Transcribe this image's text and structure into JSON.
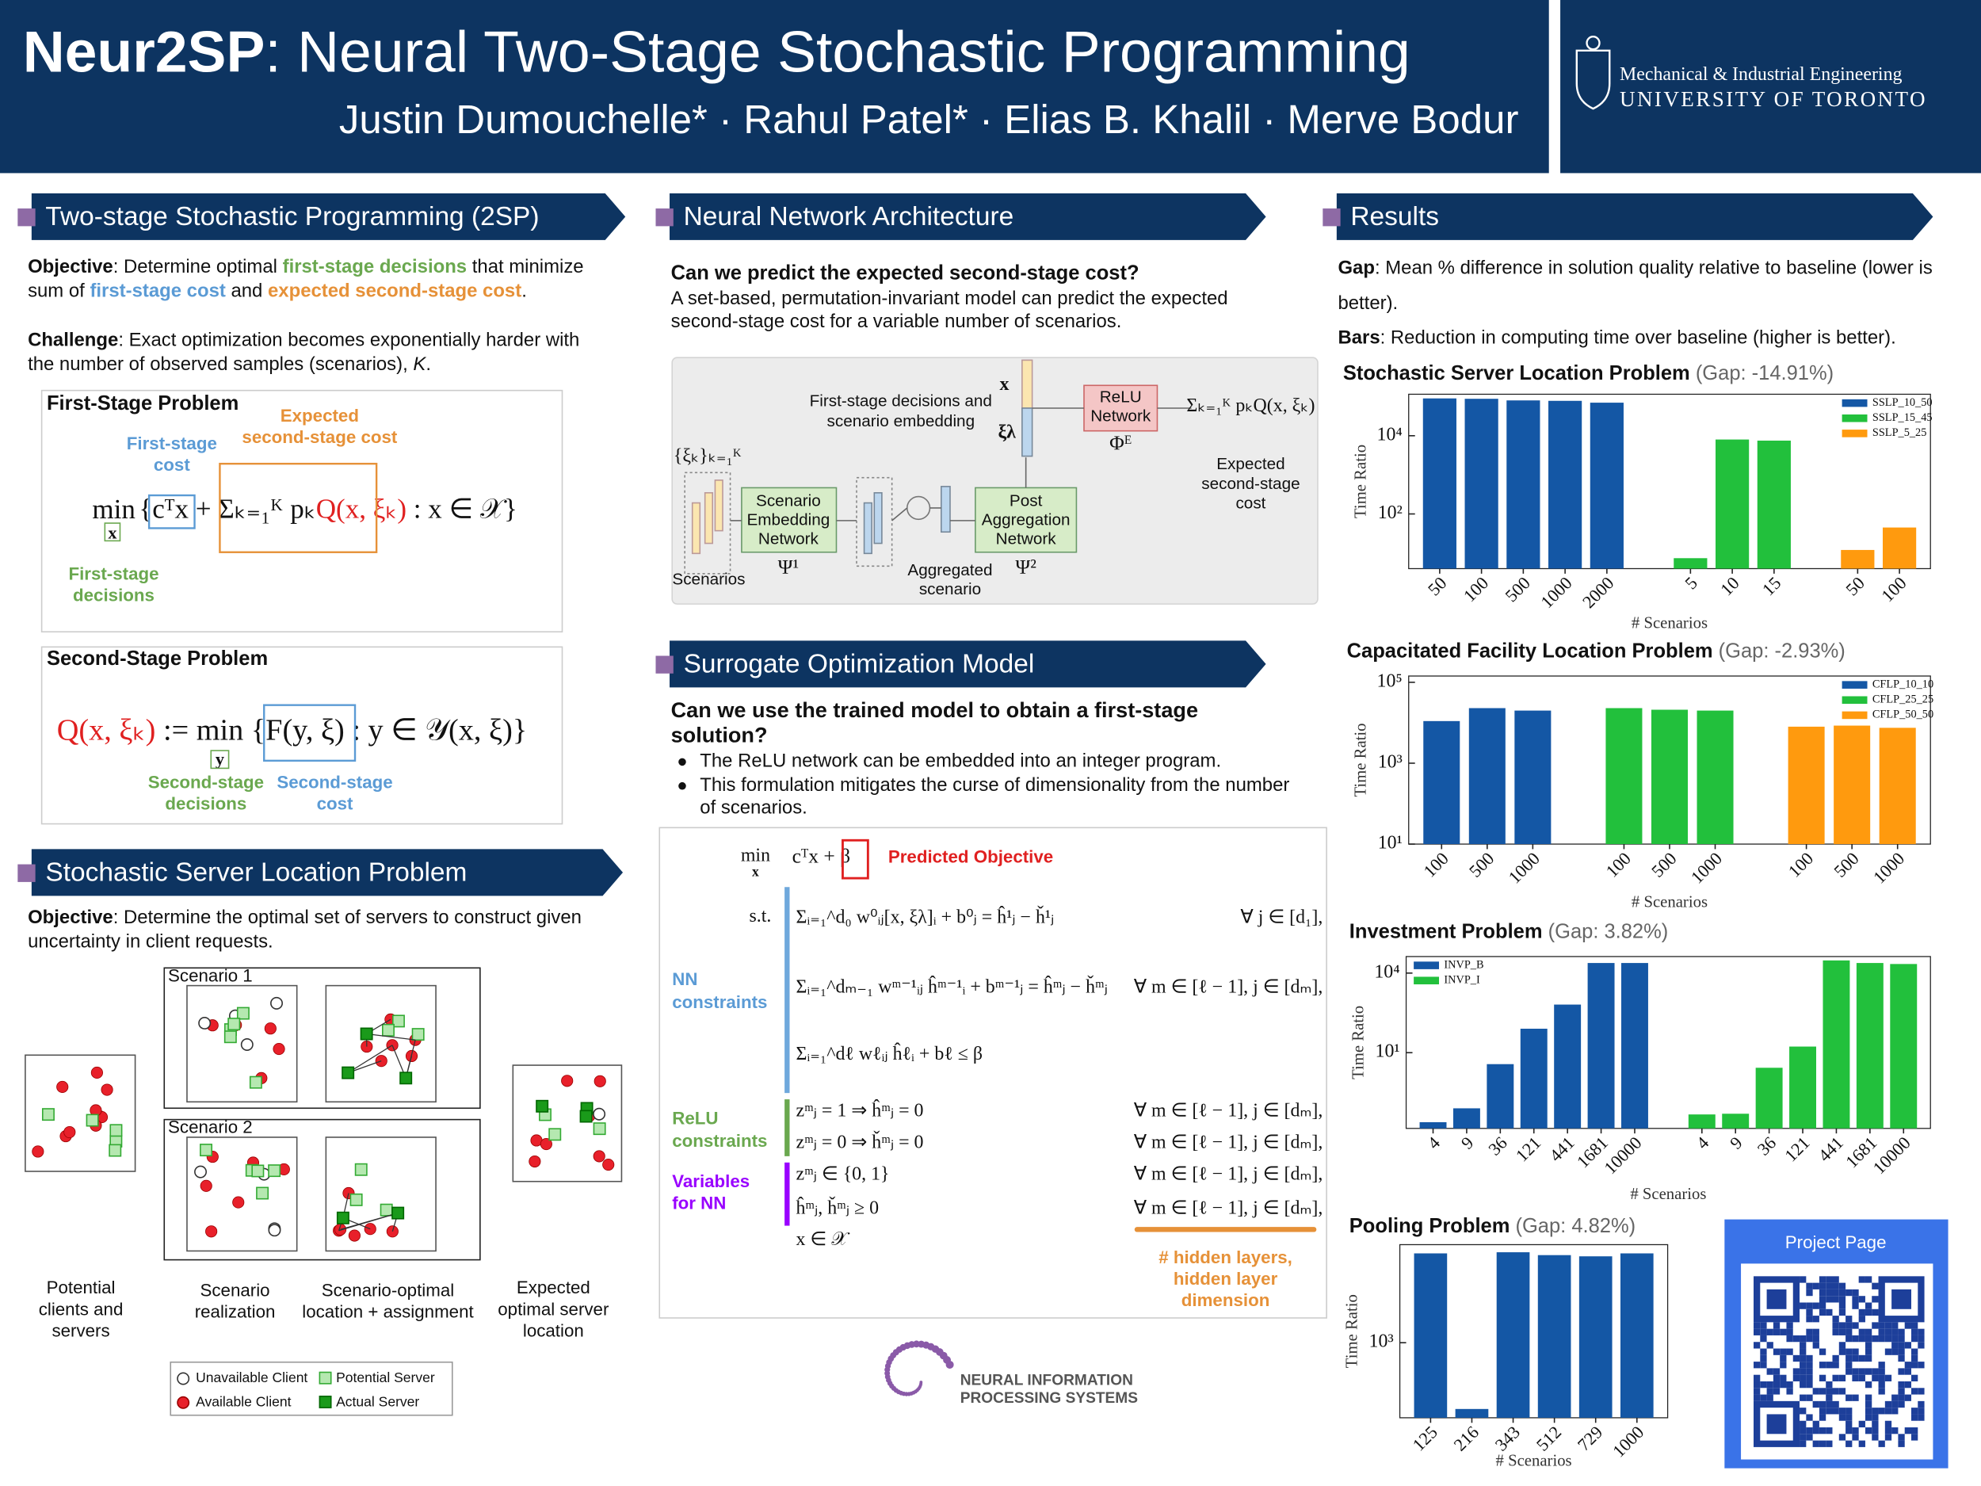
{
  "header": {
    "title": [
      {
        "text": "Neur2SP",
        "bold": true
      },
      {
        "text": ": Neural Two-Stage Stochastic Programming"
      }
    ],
    "authors": "Justin Dumouchelle* · Rahul Patel* · Elias B. Khalil · Merve Bodur",
    "department": "Mechanical & Industrial Engineering",
    "university": "UNIVERSITY OF TORONTO"
  },
  "two_stage": {
    "heading": "Two-stage Stochastic Programming (2SP)",
    "objective": [
      [
        {
          "text": "Objective",
          "bold": true
        },
        {
          "text": ": Determine optimal "
        },
        {
          "text": "first-stage decisions",
          "bold": true,
          "color": "#6aa84f"
        },
        {
          "text": " that minimize"
        }
      ],
      [
        {
          "text": "sum of "
        },
        {
          "text": "first-stage cost",
          "bold": true,
          "color": "#5b9bd5"
        },
        {
          "text": " and "
        },
        {
          "text": "expected second-stage cost",
          "bold": true,
          "color": "#e69138"
        },
        {
          "text": "."
        }
      ]
    ],
    "challenge": [
      [
        {
          "text": "Challenge",
          "bold": true
        },
        {
          "text": ": Exact optimization becomes exponentially harder with"
        }
      ],
      [
        {
          "text": "the number of observed samples (scenarios), "
        },
        {
          "text": "K",
          "italic": true
        },
        {
          "text": "."
        }
      ]
    ],
    "first_stage": {
      "heading": "First-Stage Problem",
      "formula": [
        {
          "text": "{"
        },
        {
          "text": "cᵀx"
        },
        {
          "text": " + Σₖ₌₁ᴷ pₖ"
        },
        {
          "text": "Q(x, ξₖ)",
          "color": "#e02020"
        },
        {
          "text": " : x ∈ 𝒳}"
        }
      ],
      "min": "min",
      "min_var": "x",
      "cost_label": [
        "First-stage",
        "cost"
      ],
      "expected_label": [
        "Expected",
        "second-stage cost"
      ],
      "decisions_label": [
        "First-stage",
        "decisions"
      ]
    },
    "second_stage": {
      "heading": "Second-Stage Problem",
      "formula": [
        {
          "text": "Q(x, ξₖ)",
          "color": "#e02020"
        },
        {
          "text": " := min {"
        },
        {
          "text": "F(y, ξ)"
        },
        {
          "text": " : y ∈ 𝒴(x, ξ)}"
        }
      ],
      "min_var": "y",
      "decisions_label": [
        "Second-stage",
        "decisions"
      ],
      "cost_label": [
        "Second-stage",
        "cost"
      ]
    }
  },
  "sslp": {
    "heading": "Stochastic Server Location Problem",
    "objective": [
      [
        {
          "text": "Objective",
          "bold": true
        },
        {
          "text": ": Determine the optimal set of servers to construct given"
        }
      ],
      [
        {
          "text": "uncertainty in client requests."
        }
      ]
    ],
    "scenario_1": "Scenario 1",
    "scenario_2": "Scenario 2",
    "captions": [
      [
        "Potential",
        "clients and",
        "servers"
      ],
      [
        "Scenario",
        "realization"
      ],
      [
        "Scenario-optimal",
        "location + assignment"
      ],
      [
        "Expected",
        "optimal server",
        "location"
      ]
    ],
    "legend": [
      "Unavailable Client",
      "Available Client",
      "Potential Server",
      "Actual Server"
    ]
  },
  "architecture": {
    "heading": "Neural Network Architecture",
    "question": "Can we predict the expected second-stage cost?",
    "text": [
      "A set-based, permutation-invariant model can predict the expected",
      "second-stage cost for a variable number of scenarios."
    ],
    "diagram": {
      "embedding_label": [
        "First-stage decisions and",
        "scenario embedding"
      ],
      "x": "x",
      "xi_lambda": "ξλ",
      "relu": [
        "ReLU",
        "Network"
      ],
      "phi": "Φᴱ",
      "sum": "Σₖ₌₁ᴷ pₖQ(x, ξₖ)",
      "expected": [
        "Expected",
        "second-stage",
        "cost"
      ],
      "scenario_set": "{ξₖ}ₖ₌₁ᴷ",
      "scenario_network": [
        "Scenario",
        "Embedding",
        "Network"
      ],
      "psi1": "Ψ¹",
      "scenarios": "Scenarios",
      "post_network": [
        "Post",
        "Aggregation",
        "Network"
      ],
      "psi2": "Ψ²",
      "aggregated": [
        "Aggregated",
        "scenario"
      ]
    }
  },
  "surrogate": {
    "heading": "Surrogate Optimization Model",
    "question": [
      "Can we use the trained model to obtain a first-stage",
      "solution?"
    ],
    "bullets": [
      [
        "The ReLU network can be embedded into an integer program."
      ],
      [
        "This formulation mitigates the curse of dimensionality from the number",
        "of scenarios."
      ]
    ],
    "objective": "cᵀx + β",
    "min": "min",
    "min_var": "x",
    "predicted": "Predicted Objective",
    "st": "s.t.",
    "constraints": [
      {
        "lhs": "Σᵢ₌₁^d₀ w⁰ᵢⱼ[x, ξλ]ᵢ + b⁰ⱼ = ĥ¹ⱼ − ȟ¹ⱼ",
        "domain": "∀ j ∈ [d₁],"
      },
      {
        "lhs": "Σᵢ₌₁^dₘ₋₁ wᵐ⁻¹ᵢⱼ ĥᵐ⁻¹ᵢ + bᵐ⁻¹ⱼ = ĥᵐⱼ − ȟᵐⱼ",
        "domain": "∀ m ∈ [ℓ − 1], j ∈ [dₘ],"
      },
      {
        "lhs": "Σᵢ₌₁^dℓ wℓᵢⱼ ĥℓᵢ + bℓ ≤ β"
      },
      {
        "lhs": "zᵐⱼ = 1 ⇒ ĥᵐⱼ = 0",
        "domain": "∀ m ∈ [ℓ − 1], j ∈ [dₘ],"
      },
      {
        "lhs": "zᵐⱼ = 0 ⇒ ȟᵐⱼ = 0",
        "domain": "∀ m ∈ [ℓ − 1], j ∈ [dₘ],"
      },
      {
        "lhs": "zᵐⱼ ∈ {0, 1}",
        "domain": "∀ m ∈ [ℓ − 1], j ∈ [dₘ],"
      },
      {
        "lhs": "ĥᵐⱼ, ȟᵐⱼ ≥ 0",
        "domain": "∀ m ∈ [ℓ − 1], j ∈ [dₘ],"
      },
      {
        "lhs": "x ∈ 𝒳"
      }
    ],
    "nn_label": [
      "NN",
      "constraints"
    ],
    "relu_label": [
      "ReLU",
      "constraints"
    ],
    "variables_label": [
      "Variables",
      "for NN"
    ],
    "hidden_label": [
      "# hidden layers,",
      "hidden layer",
      "dimension"
    ]
  },
  "neurips": [
    "NEURAL INFORMATION",
    "PROCESSING SYSTEMS"
  ],
  "results": {
    "heading": "Results",
    "gap": [
      [
        {
          "text": "Gap",
          "bold": true
        },
        {
          "text": ": Mean % difference in solution quality relative to baseline (lower is"
        }
      ],
      [
        {
          "text": "better)."
        }
      ]
    ],
    "bars": [
      [
        {
          "text": "Bars",
          "bold": true
        },
        {
          "text": ": Reduction in computing time over baseline (higher is better)."
        }
      ]
    ]
  },
  "project_page": "Project Page",
  "chart_data": [
    {
      "type": "bar",
      "title": "Stochastic Server Location Problem",
      "subtitle": "(Gap: -14.91%)",
      "xlabel": "# Scenarios",
      "ylabel": "Time Ratio",
      "log_scale": true,
      "legend": "upper right",
      "ylim": [
        4,
        115000
      ],
      "yticks": [
        {
          "value": 100,
          "label": "10²"
        },
        {
          "value": 10000,
          "label": "10⁴"
        }
      ],
      "series": [
        {
          "name": "SSLP_10_50",
          "color": "#1457a5",
          "categories": [
            "50",
            "100",
            "500",
            "1000",
            "2000"
          ],
          "values": [
            90000,
            88000,
            80000,
            78000,
            70000
          ]
        },
        {
          "name": "SSLP_15_45",
          "color": "#22c03c",
          "categories": [
            "5",
            "10",
            "15"
          ],
          "values": [
            7.4,
            8000,
            7500
          ]
        },
        {
          "name": "SSLP_5_25",
          "color": "#ff9a0e",
          "categories": [
            "50",
            "100"
          ],
          "values": [
            12,
            45
          ]
        }
      ]
    },
    {
      "type": "bar",
      "title": "Capacitated Facility Location Problem",
      "subtitle": "(Gap: -2.93%)",
      "xlabel": "# Scenarios",
      "ylabel": "Time Ratio",
      "log_scale": true,
      "legend": "upper right",
      "ylim": [
        10,
        143000
      ],
      "yticks": [
        {
          "value": 10,
          "label": "10¹"
        },
        {
          "value": 1000,
          "label": "10³"
        },
        {
          "value": 100000,
          "label": "10⁵"
        }
      ],
      "series": [
        {
          "name": "CFLP_10_10",
          "color": "#1457a5",
          "categories": [
            "100",
            "500",
            "1000"
          ],
          "values": [
            11000,
            23000,
            20000
          ]
        },
        {
          "name": "CFLP_25_25",
          "color": "#22c03c",
          "categories": [
            "100",
            "500",
            "1000"
          ],
          "values": [
            23000,
            21000,
            20000
          ]
        },
        {
          "name": "CFLP_50_50",
          "color": "#ff9a0e",
          "categories": [
            "100",
            "500",
            "1000"
          ],
          "values": [
            8000,
            8500,
            7500
          ]
        }
      ]
    },
    {
      "type": "bar",
      "title": "Investment Problem",
      "subtitle": "(Gap: 3.82%)",
      "xlabel": "# Scenarios",
      "ylabel": "Time Ratio",
      "log_scale": true,
      "legend": "upper left",
      "ylim": [
        0.014,
        42000
      ],
      "yticks": [
        {
          "value": 10,
          "label": "10¹"
        },
        {
          "value": 10000,
          "label": "10⁴"
        }
      ],
      "series": [
        {
          "name": "INVP_B",
          "color": "#1457a5",
          "categories": [
            "4",
            "9",
            "36",
            "121",
            "441",
            "1681",
            "10000"
          ],
          "values": [
            0.024,
            0.08,
            3.7,
            80,
            650,
            24000,
            24000
          ]
        },
        {
          "name": "INVP_I",
          "color": "#22c03c",
          "categories": [
            "4",
            "9",
            "36",
            "121",
            "441",
            "1681",
            "10000"
          ],
          "values": [
            0.047,
            0.05,
            2.7,
            17,
            30000,
            24000,
            22000
          ]
        }
      ]
    },
    {
      "type": "bar",
      "title": "Pooling Problem",
      "subtitle": "(Gap: 4.82%)",
      "xlabel": "# Scenarios",
      "ylabel": "Time Ratio",
      "log_scale": true,
      "ylim": [
        180,
        9400
      ],
      "yticks": [
        {
          "value": 1000,
          "label": "10³"
        }
      ],
      "series": [
        {
          "color": "#1457a5",
          "categories": [
            "125",
            "216",
            "343",
            "512",
            "729",
            "1000"
          ],
          "values": [
            7700,
            220,
            7900,
            7400,
            7200,
            7700
          ]
        }
      ]
    }
  ]
}
